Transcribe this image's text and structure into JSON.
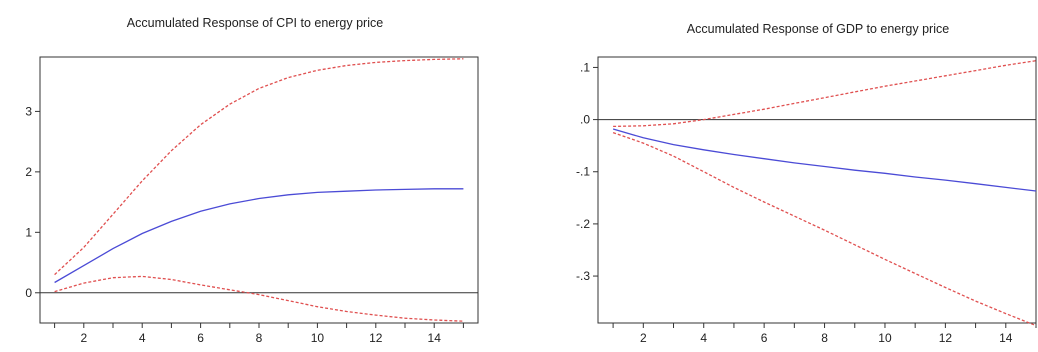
{
  "chart_data": [
    {
      "type": "line",
      "title": "Accumulated Response of CPI to energy price",
      "xlabel": "",
      "ylabel": "",
      "xlim": [
        0.5,
        15.5
      ],
      "ylim": [
        -0.5,
        3.9
      ],
      "x_ticks": [
        2,
        4,
        6,
        8,
        10,
        12,
        14
      ],
      "y_ticks": [
        0,
        1,
        2,
        3
      ],
      "y_tick_labels": [
        "0",
        "1",
        "2",
        "3"
      ],
      "zero_line": true,
      "grid": false,
      "legend": "none",
      "x": [
        1,
        2,
        3,
        4,
        5,
        6,
        7,
        8,
        9,
        10,
        11,
        12,
        13,
        14,
        15
      ],
      "series": [
        {
          "role": "response",
          "color": "#4b4bd6",
          "dash": "solid",
          "values": [
            0.17,
            0.45,
            0.73,
            0.98,
            1.18,
            1.35,
            1.47,
            1.56,
            1.62,
            1.66,
            1.68,
            1.7,
            1.71,
            1.72,
            1.72
          ]
        },
        {
          "role": "upper-band",
          "color": "#e05050",
          "dash": "dashed",
          "values": [
            0.3,
            0.75,
            1.3,
            1.85,
            2.35,
            2.78,
            3.12,
            3.38,
            3.56,
            3.68,
            3.76,
            3.81,
            3.84,
            3.86,
            3.87
          ]
        },
        {
          "role": "lower-band",
          "color": "#e05050",
          "dash": "dashed",
          "values": [
            0.02,
            0.16,
            0.25,
            0.27,
            0.22,
            0.13,
            0.05,
            -0.03,
            -0.13,
            -0.23,
            -0.31,
            -0.37,
            -0.42,
            -0.45,
            -0.47
          ]
        }
      ]
    },
    {
      "type": "line",
      "title": "Accumulated Response of GDP to energy price",
      "xlabel": "",
      "ylabel": "",
      "xlim": [
        0.5,
        15.0
      ],
      "ylim": [
        -0.39,
        0.12
      ],
      "x_ticks": [
        2,
        4,
        6,
        8,
        10,
        12,
        14
      ],
      "y_ticks": [
        0.1,
        0.0,
        -0.1,
        -0.2,
        -0.3
      ],
      "y_tick_labels": [
        ".1",
        ".0",
        "-.1",
        "-.2",
        "-.3"
      ],
      "zero_line": true,
      "grid": false,
      "legend": "none",
      "x": [
        1,
        2,
        3,
        4,
        5,
        6,
        7,
        8,
        9,
        10,
        11,
        12,
        13,
        14,
        15
      ],
      "series": [
        {
          "role": "response",
          "color": "#4b4bd6",
          "dash": "solid",
          "values": [
            -0.018,
            -0.035,
            -0.048,
            -0.058,
            -0.067,
            -0.075,
            -0.083,
            -0.09,
            -0.097,
            -0.103,
            -0.11,
            -0.116,
            -0.123,
            -0.13,
            -0.137
          ]
        },
        {
          "role": "upper-band",
          "color": "#e05050",
          "dash": "dashed",
          "values": [
            -0.013,
            -0.012,
            -0.008,
            0.0,
            0.01,
            0.02,
            0.031,
            0.042,
            0.053,
            0.064,
            0.074,
            0.084,
            0.094,
            0.104,
            0.113
          ]
        },
        {
          "role": "lower-band",
          "color": "#e05050",
          "dash": "dashed",
          "values": [
            -0.025,
            -0.045,
            -0.07,
            -0.1,
            -0.13,
            -0.158,
            -0.185,
            -0.212,
            -0.24,
            -0.268,
            -0.295,
            -0.322,
            -0.348,
            -0.372,
            -0.395
          ]
        }
      ]
    }
  ]
}
